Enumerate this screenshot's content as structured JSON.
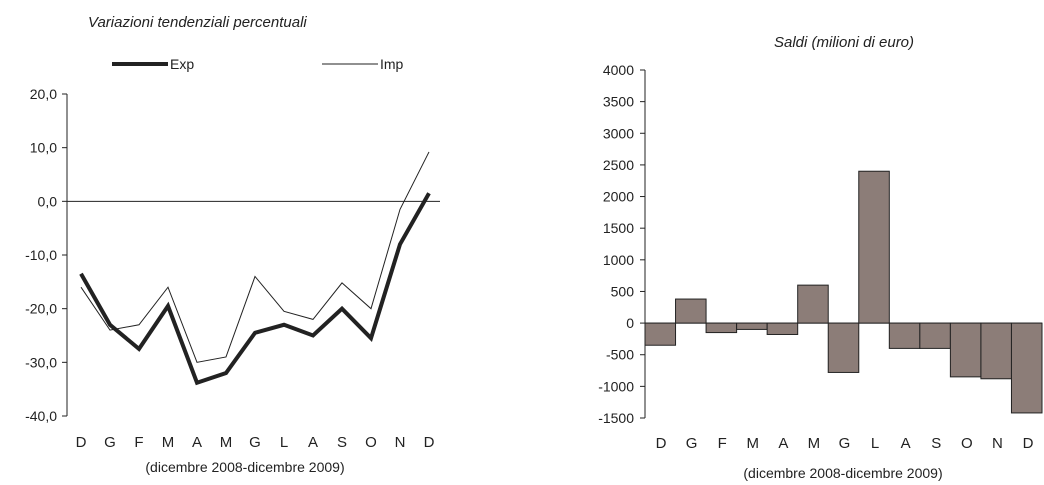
{
  "chart_data": [
    {
      "type": "line",
      "title": "Variazioni tendenziali percentuali",
      "xlabel": "(dicembre 2008-dicembre 2009)",
      "categories": [
        "D",
        "G",
        "F",
        "M",
        "A",
        "M",
        "G",
        "L",
        "A",
        "S",
        "O",
        "N",
        "D"
      ],
      "y_ticks": [
        "20,0",
        "10,0",
        "0,0",
        "-10,0",
        "-20,0",
        "-30,0",
        "-40,0"
      ],
      "ylim": [
        -40,
        20
      ],
      "legend_position": "top",
      "series": [
        {
          "name": "Exp",
          "values": [
            -13.5,
            -23,
            -27.5,
            -19.5,
            -33.8,
            -32,
            -24.5,
            -23,
            -25,
            -20,
            -25.5,
            -8,
            1.5
          ]
        },
        {
          "name": "Imp",
          "values": [
            -16,
            -24,
            -23,
            -16,
            -30,
            -29,
            -14,
            -20.5,
            -22,
            -15.2,
            -20,
            -1.5,
            9.2
          ]
        }
      ],
      "colors": {
        "exp": "#222222",
        "imp": "#222222"
      }
    },
    {
      "type": "bar",
      "title": "Saldi (milioni di euro)",
      "xlabel": "(dicembre 2008-dicembre 2009)",
      "categories": [
        "D",
        "G",
        "F",
        "M",
        "A",
        "M",
        "G",
        "L",
        "A",
        "S",
        "O",
        "N",
        "D"
      ],
      "values": [
        -350,
        380,
        -150,
        -100,
        -180,
        600,
        -780,
        2400,
        -400,
        -400,
        -850,
        -880,
        -1420
      ],
      "y_ticks": [
        "4000",
        "3500",
        "3000",
        "2500",
        "2000",
        "1500",
        "1000",
        "500",
        "0",
        "-500",
        "-1000",
        "-1500"
      ],
      "ylim": [
        -1500,
        4000
      ],
      "colors": {
        "bar_fill": "#8c7d78",
        "bar_stroke": "#222222"
      }
    }
  ]
}
